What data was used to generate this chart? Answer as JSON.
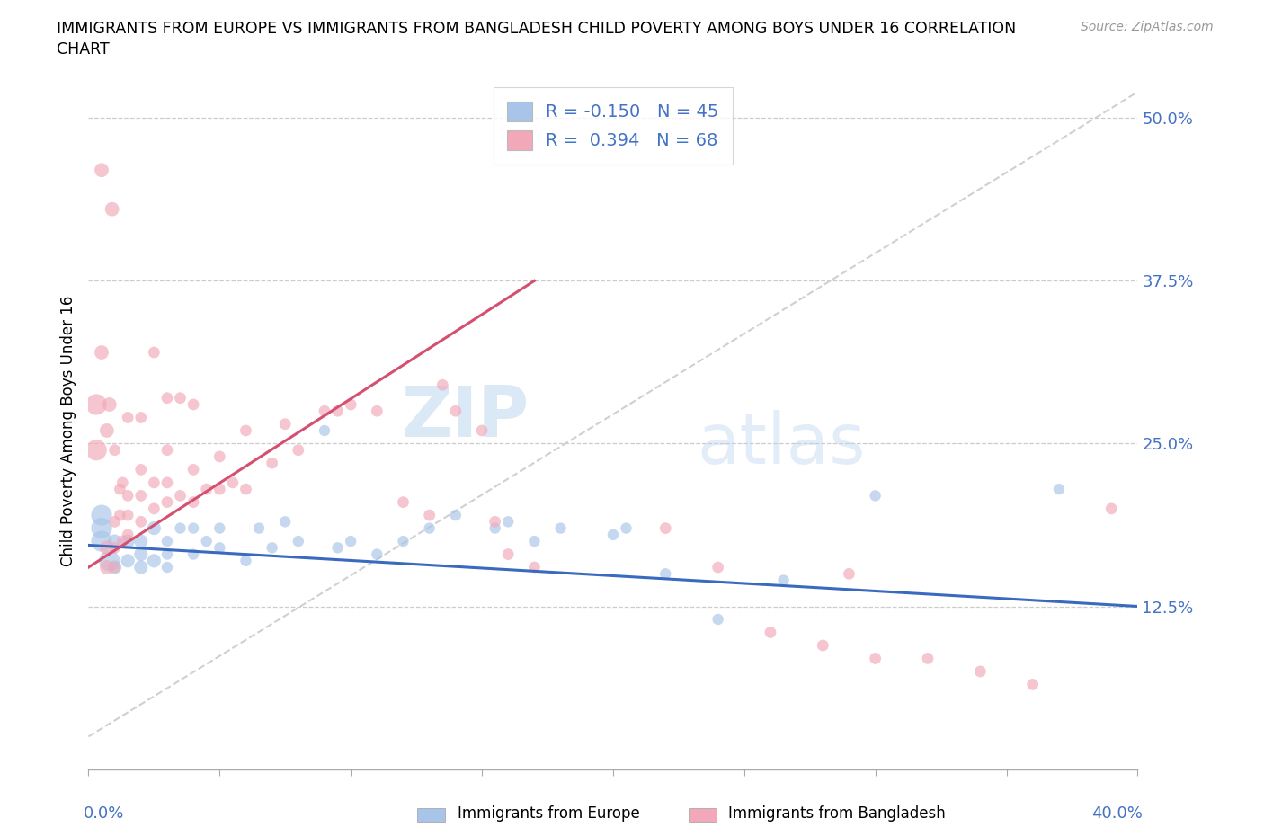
{
  "title_line1": "IMMIGRANTS FROM EUROPE VS IMMIGRANTS FROM BANGLADESH CHILD POVERTY AMONG BOYS UNDER 16 CORRELATION",
  "title_line2": "CHART",
  "source": "Source: ZipAtlas.com",
  "ylabel": "Child Poverty Among Boys Under 16",
  "xlim": [
    0.0,
    0.4
  ],
  "ylim": [
    0.0,
    0.52
  ],
  "europe_color": "#a8c4e8",
  "bangladesh_color": "#f2a8b8",
  "europe_line_color": "#3a6abf",
  "bangladesh_line_color": "#d45070",
  "trendline_dash_color": "#d0d0d0",
  "legend_europe_label": "R = -0.150   N = 45",
  "legend_bangladesh_label": "R =  0.394   N = 68",
  "watermark_zip": "ZIP",
  "watermark_atlas": "atlas",
  "europe_line_x": [
    0.0,
    0.4
  ],
  "europe_line_y": [
    0.172,
    0.125
  ],
  "bangladesh_line_x": [
    0.0,
    0.17
  ],
  "bangladesh_line_y": [
    0.155,
    0.375
  ],
  "dash_line_x": [
    0.0,
    0.4
  ],
  "dash_line_y": [
    0.025,
    0.52
  ],
  "eu_x": [
    0.005,
    0.005,
    0.005,
    0.008,
    0.01,
    0.01,
    0.015,
    0.015,
    0.02,
    0.02,
    0.02,
    0.025,
    0.025,
    0.03,
    0.03,
    0.03,
    0.035,
    0.04,
    0.04,
    0.045,
    0.05,
    0.05,
    0.06,
    0.065,
    0.07,
    0.075,
    0.08,
    0.09,
    0.095,
    0.1,
    0.11,
    0.12,
    0.13,
    0.14,
    0.155,
    0.16,
    0.17,
    0.18,
    0.2,
    0.205,
    0.22,
    0.24,
    0.265,
    0.3,
    0.37
  ],
  "eu_y": [
    0.175,
    0.185,
    0.195,
    0.16,
    0.155,
    0.175,
    0.16,
    0.175,
    0.155,
    0.175,
    0.165,
    0.16,
    0.185,
    0.155,
    0.165,
    0.175,
    0.185,
    0.165,
    0.185,
    0.175,
    0.17,
    0.185,
    0.16,
    0.185,
    0.17,
    0.19,
    0.175,
    0.26,
    0.17,
    0.175,
    0.165,
    0.175,
    0.185,
    0.195,
    0.185,
    0.19,
    0.175,
    0.185,
    0.18,
    0.185,
    0.15,
    0.115,
    0.145,
    0.21,
    0.215
  ],
  "bd_x": [
    0.003,
    0.003,
    0.005,
    0.005,
    0.007,
    0.007,
    0.007,
    0.008,
    0.009,
    0.01,
    0.01,
    0.01,
    0.01,
    0.012,
    0.012,
    0.013,
    0.013,
    0.015,
    0.015,
    0.015,
    0.015,
    0.02,
    0.02,
    0.02,
    0.02,
    0.025,
    0.025,
    0.025,
    0.03,
    0.03,
    0.03,
    0.03,
    0.035,
    0.035,
    0.04,
    0.04,
    0.04,
    0.045,
    0.05,
    0.05,
    0.055,
    0.06,
    0.06,
    0.07,
    0.075,
    0.08,
    0.09,
    0.095,
    0.1,
    0.11,
    0.12,
    0.13,
    0.135,
    0.14,
    0.15,
    0.155,
    0.16,
    0.17,
    0.22,
    0.24,
    0.26,
    0.28,
    0.29,
    0.3,
    0.32,
    0.34,
    0.36,
    0.39
  ],
  "bd_y": [
    0.245,
    0.28,
    0.32,
    0.46,
    0.155,
    0.17,
    0.26,
    0.28,
    0.43,
    0.155,
    0.17,
    0.19,
    0.245,
    0.195,
    0.215,
    0.175,
    0.22,
    0.18,
    0.195,
    0.21,
    0.27,
    0.19,
    0.21,
    0.23,
    0.27,
    0.2,
    0.22,
    0.32,
    0.205,
    0.22,
    0.245,
    0.285,
    0.21,
    0.285,
    0.205,
    0.23,
    0.28,
    0.215,
    0.215,
    0.24,
    0.22,
    0.215,
    0.26,
    0.235,
    0.265,
    0.245,
    0.275,
    0.275,
    0.28,
    0.275,
    0.205,
    0.195,
    0.295,
    0.275,
    0.26,
    0.19,
    0.165,
    0.155,
    0.185,
    0.155,
    0.105,
    0.095,
    0.15,
    0.085,
    0.085,
    0.075,
    0.065,
    0.2
  ]
}
